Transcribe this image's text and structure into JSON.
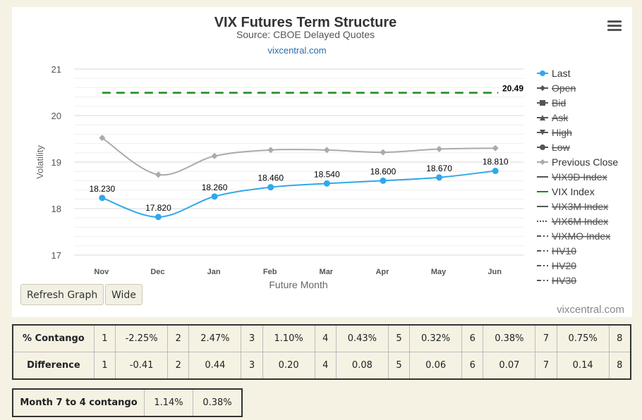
{
  "menu_icon": "hamburger-menu-icon",
  "chart_data": {
    "type": "line",
    "title": "VIX Futures Term Structure",
    "subtitle": "Source: CBOE Delayed Quotes",
    "link": "vixcentral.com",
    "credits": "vixcentral.com",
    "xlabel": "Future Month",
    "ylabel": "Volatility",
    "ylim": [
      17,
      21
    ],
    "yticks": [
      17,
      18,
      19,
      20,
      21
    ],
    "grid": true,
    "legend_position": "right",
    "categories": [
      "Nov",
      "Dec",
      "Jan",
      "Feb",
      "Mar",
      "Apr",
      "May",
      "Jun"
    ],
    "series": [
      {
        "name": "Last",
        "color": "#2fa8ea",
        "visible": true,
        "marker": "circle",
        "values": [
          18.23,
          17.82,
          18.26,
          18.46,
          18.54,
          18.6,
          18.67,
          18.81
        ],
        "labels": [
          "18.230",
          "17.820",
          "18.260",
          "18.460",
          "18.540",
          "18.600",
          "18.670",
          "18.810"
        ]
      },
      {
        "name": "Previous Close",
        "color": "#aaaaaa",
        "visible": true,
        "marker": "diamond",
        "values": [
          19.52,
          18.73,
          19.13,
          19.26,
          19.26,
          19.21,
          19.28,
          19.3
        ]
      },
      {
        "name": "VIX Index",
        "color": "#1a8a1a",
        "visible": true,
        "dash": true,
        "value": 20.49,
        "label": "20.49"
      }
    ],
    "legend": [
      {
        "name": "Last",
        "enabled": true,
        "symbol": "circle",
        "color": "#2fa8ea"
      },
      {
        "name": "Open",
        "enabled": false,
        "symbol": "diamond",
        "color": "#555555"
      },
      {
        "name": "Bid",
        "enabled": false,
        "symbol": "square",
        "color": "#555555"
      },
      {
        "name": "Ask",
        "enabled": false,
        "symbol": "triangle",
        "color": "#555555"
      },
      {
        "name": "High",
        "enabled": false,
        "symbol": "triangle-down",
        "color": "#555555"
      },
      {
        "name": "Low",
        "enabled": false,
        "symbol": "circle",
        "color": "#555555"
      },
      {
        "name": "Previous Close",
        "enabled": true,
        "symbol": "diamond",
        "color": "#aaaaaa"
      },
      {
        "name": "VIX9D Index",
        "enabled": false,
        "symbol": "line",
        "color": "#555555"
      },
      {
        "name": "VIX Index",
        "enabled": true,
        "symbol": "line",
        "color": "#1a8a1a"
      },
      {
        "name": "VIX3M Index",
        "enabled": false,
        "symbol": "line",
        "color": "#555555"
      },
      {
        "name": "VIX6M Index",
        "enabled": false,
        "symbol": "dotted",
        "color": "#555555"
      },
      {
        "name": "VIXMO Index",
        "enabled": false,
        "symbol": "dashdot",
        "color": "#555555"
      },
      {
        "name": "HV10",
        "enabled": false,
        "symbol": "dashdot",
        "color": "#555555"
      },
      {
        "name": "HV20",
        "enabled": false,
        "symbol": "dashdot",
        "color": "#555555"
      },
      {
        "name": "HV30",
        "enabled": false,
        "symbol": "dashdot",
        "color": "#555555"
      }
    ]
  },
  "buttons": {
    "refresh": "Refresh Graph",
    "wide": "Wide"
  },
  "contango_table": {
    "label": "% Contango",
    "cells": [
      "1",
      "-2.25%",
      "2",
      "2.47%",
      "3",
      "1.10%",
      "4",
      "0.43%",
      "5",
      "0.32%",
      "6",
      "0.38%",
      "7",
      "0.75%",
      "8"
    ]
  },
  "difference_table": {
    "label": "Difference",
    "cells": [
      "1",
      "-0.41",
      "2",
      "0.44",
      "3",
      "0.20",
      "4",
      "0.08",
      "5",
      "0.06",
      "6",
      "0.07",
      "7",
      "0.14",
      "8"
    ]
  },
  "month_table": {
    "label": "Month 7 to 4 contango",
    "cells": [
      "1.14%",
      "0.38%"
    ]
  }
}
